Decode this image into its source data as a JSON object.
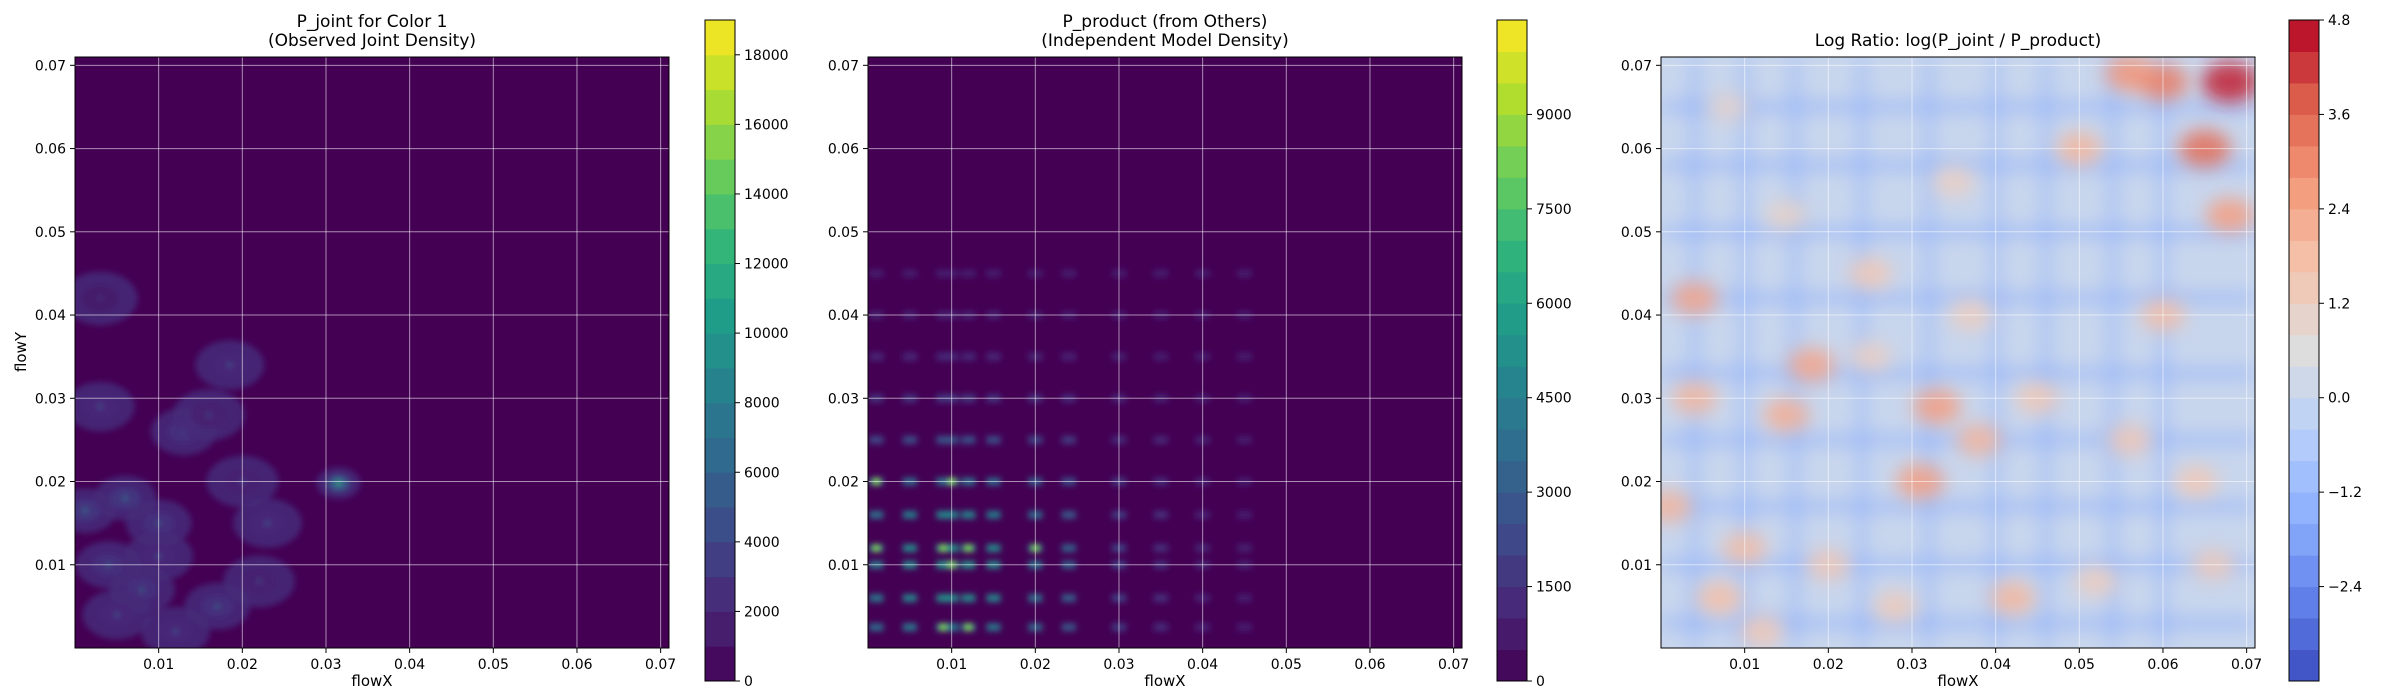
{
  "chart_data": [
    {
      "type": "heatmap",
      "title": "P_joint for Color 1\n(Observed Joint Density)",
      "xlabel": "flowX",
      "ylabel": "flowY",
      "xlim": [
        0.0,
        0.071
      ],
      "ylim": [
        0.0,
        0.071
      ],
      "x_ticks": [
        "0.01",
        "0.02",
        "0.03",
        "0.04",
        "0.05",
        "0.06",
        "0.07"
      ],
      "y_ticks": [
        "0.01",
        "0.02",
        "0.03",
        "0.04",
        "0.05",
        "0.06",
        "0.07"
      ],
      "grid": true,
      "colormap": "viridis",
      "colorbar": {
        "vmin": 0,
        "vmax": 19000,
        "levels": 19,
        "ticks": [
          "0",
          "2000",
          "4000",
          "6000",
          "8000",
          "10000",
          "12000",
          "14000",
          "16000",
          "18000"
        ]
      },
      "hotspots": [
        {
          "x": 0.0315,
          "y": 0.0198,
          "intensity": 0.65
        },
        {
          "x": 0.0012,
          "y": 0.0165,
          "intensity": 0.35
        },
        {
          "x": 0.004,
          "y": 0.01,
          "intensity": 0.3
        },
        {
          "x": 0.006,
          "y": 0.018,
          "intensity": 0.35
        },
        {
          "x": 0.01,
          "y": 0.015,
          "intensity": 0.3
        },
        {
          "x": 0.013,
          "y": 0.026,
          "intensity": 0.3
        },
        {
          "x": 0.0185,
          "y": 0.034,
          "intensity": 0.25
        },
        {
          "x": 0.003,
          "y": 0.029,
          "intensity": 0.25
        },
        {
          "x": 0.008,
          "y": 0.007,
          "intensity": 0.3
        },
        {
          "x": 0.017,
          "y": 0.005,
          "intensity": 0.3
        },
        {
          "x": 0.012,
          "y": 0.002,
          "intensity": 0.25
        },
        {
          "x": 0.023,
          "y": 0.015,
          "intensity": 0.25
        },
        {
          "x": 0.02,
          "y": 0.02,
          "intensity": 0.2
        },
        {
          "x": 0.005,
          "y": 0.004,
          "intensity": 0.25
        },
        {
          "x": 0.01,
          "y": 0.011,
          "intensity": 0.25
        },
        {
          "x": 0.003,
          "y": 0.042,
          "intensity": 0.15
        },
        {
          "x": 0.016,
          "y": 0.028,
          "intensity": 0.2
        },
        {
          "x": 0.022,
          "y": 0.008,
          "intensity": 0.2
        }
      ]
    },
    {
      "type": "heatmap",
      "title": "P_product (from Others)\n(Independent Model Density)",
      "xlabel": "flowX",
      "ylabel": "",
      "xlim": [
        0.0,
        0.071
      ],
      "ylim": [
        0.0,
        0.071
      ],
      "x_ticks": [
        "0.01",
        "0.02",
        "0.03",
        "0.04",
        "0.05",
        "0.06",
        "0.07"
      ],
      "y_ticks": [
        "0.01",
        "0.02",
        "0.03",
        "0.04",
        "0.05",
        "0.06",
        "0.07"
      ],
      "grid": true,
      "colormap": "viridis",
      "colorbar": {
        "vmin": 0,
        "vmax": 10500,
        "levels": 21,
        "ticks": [
          "0",
          "1500",
          "3000",
          "4500",
          "6000",
          "7500",
          "9000"
        ]
      },
      "grid_x_peaks": [
        0.001,
        0.005,
        0.009,
        0.01,
        0.012,
        0.015,
        0.02,
        0.024,
        0.03,
        0.035,
        0.04,
        0.045
      ],
      "grid_y_peaks": [
        0.0025,
        0.006,
        0.01,
        0.012,
        0.016,
        0.02,
        0.025,
        0.03,
        0.035,
        0.04,
        0.045
      ],
      "brightest": [
        {
          "x": 0.001,
          "y": 0.012
        },
        {
          "x": 0.009,
          "y": 0.012
        },
        {
          "x": 0.01,
          "y": 0.01
        },
        {
          "x": 0.012,
          "y": 0.012
        },
        {
          "x": 0.02,
          "y": 0.012
        },
        {
          "x": 0.009,
          "y": 0.0025
        },
        {
          "x": 0.012,
          "y": 0.0025
        },
        {
          "x": 0.001,
          "y": 0.02
        },
        {
          "x": 0.01,
          "y": 0.02
        }
      ]
    },
    {
      "type": "heatmap",
      "title": "Log Ratio: log(P_joint / P_product)",
      "xlabel": "flowX",
      "ylabel": "",
      "xlim": [
        0.0,
        0.071
      ],
      "ylim": [
        0.0,
        0.071
      ],
      "x_ticks": [
        "0.01",
        "0.02",
        "0.03",
        "0.04",
        "0.05",
        "0.06",
        "0.07"
      ],
      "y_ticks": [
        "0.01",
        "0.02",
        "0.03",
        "0.04",
        "0.05",
        "0.06",
        "0.07"
      ],
      "grid": true,
      "colormap": "coolwarm",
      "colorbar": {
        "vmin": -3.6,
        "vmax": 4.8,
        "levels": 21,
        "ticks": [
          "4.8",
          "3.6",
          "2.4",
          "1.2",
          "0.0",
          "−1.2",
          "−2.4"
        ]
      },
      "warm_regions": [
        {
          "x": 0.068,
          "y": 0.068,
          "value": 4.5
        },
        {
          "x": 0.065,
          "y": 0.06,
          "value": 3.5
        },
        {
          "x": 0.06,
          "y": 0.068,
          "value": 3.2
        },
        {
          "x": 0.056,
          "y": 0.069,
          "value": 2.8
        },
        {
          "x": 0.068,
          "y": 0.052,
          "value": 2.6
        },
        {
          "x": 0.004,
          "y": 0.042,
          "value": 2.4
        },
        {
          "x": 0.018,
          "y": 0.034,
          "value": 2.4
        },
        {
          "x": 0.033,
          "y": 0.029,
          "value": 2.6
        },
        {
          "x": 0.031,
          "y": 0.02,
          "value": 2.6
        },
        {
          "x": 0.015,
          "y": 0.028,
          "value": 2.2
        },
        {
          "x": 0.004,
          "y": 0.03,
          "value": 2.0
        },
        {
          "x": 0.038,
          "y": 0.025,
          "value": 2.0
        },
        {
          "x": 0.042,
          "y": 0.006,
          "value": 2.0
        },
        {
          "x": 0.001,
          "y": 0.017,
          "value": 2.0
        },
        {
          "x": 0.01,
          "y": 0.012,
          "value": 1.8
        },
        {
          "x": 0.007,
          "y": 0.006,
          "value": 1.8
        },
        {
          "x": 0.06,
          "y": 0.04,
          "value": 1.8
        },
        {
          "x": 0.05,
          "y": 0.06,
          "value": 2.0
        },
        {
          "x": 0.025,
          "y": 0.045,
          "value": 1.5
        },
        {
          "x": 0.045,
          "y": 0.03,
          "value": 1.5
        },
        {
          "x": 0.056,
          "y": 0.025,
          "value": 1.5
        },
        {
          "x": 0.064,
          "y": 0.02,
          "value": 1.5
        },
        {
          "x": 0.037,
          "y": 0.04,
          "value": 1.3
        },
        {
          "x": 0.02,
          "y": 0.01,
          "value": 1.5
        },
        {
          "x": 0.012,
          "y": 0.002,
          "value": 1.5
        },
        {
          "x": 0.028,
          "y": 0.005,
          "value": 1.4
        },
        {
          "x": 0.052,
          "y": 0.008,
          "value": 1.3
        },
        {
          "x": 0.066,
          "y": 0.01,
          "value": 1.4
        },
        {
          "x": 0.015,
          "y": 0.052,
          "value": 1.1
        },
        {
          "x": 0.035,
          "y": 0.056,
          "value": 1.2
        },
        {
          "x": 0.008,
          "y": 0.065,
          "value": 1.0
        },
        {
          "x": 0.025,
          "y": 0.035,
          "value": 1.2
        }
      ],
      "cool_rows_y": [
        0.003,
        0.01,
        0.017,
        0.025,
        0.033,
        0.042,
        0.05,
        0.058,
        0.065
      ],
      "cool_cols_x": [
        0.004,
        0.01,
        0.016,
        0.024,
        0.032,
        0.04,
        0.046,
        0.054,
        0.06
      ]
    }
  ]
}
